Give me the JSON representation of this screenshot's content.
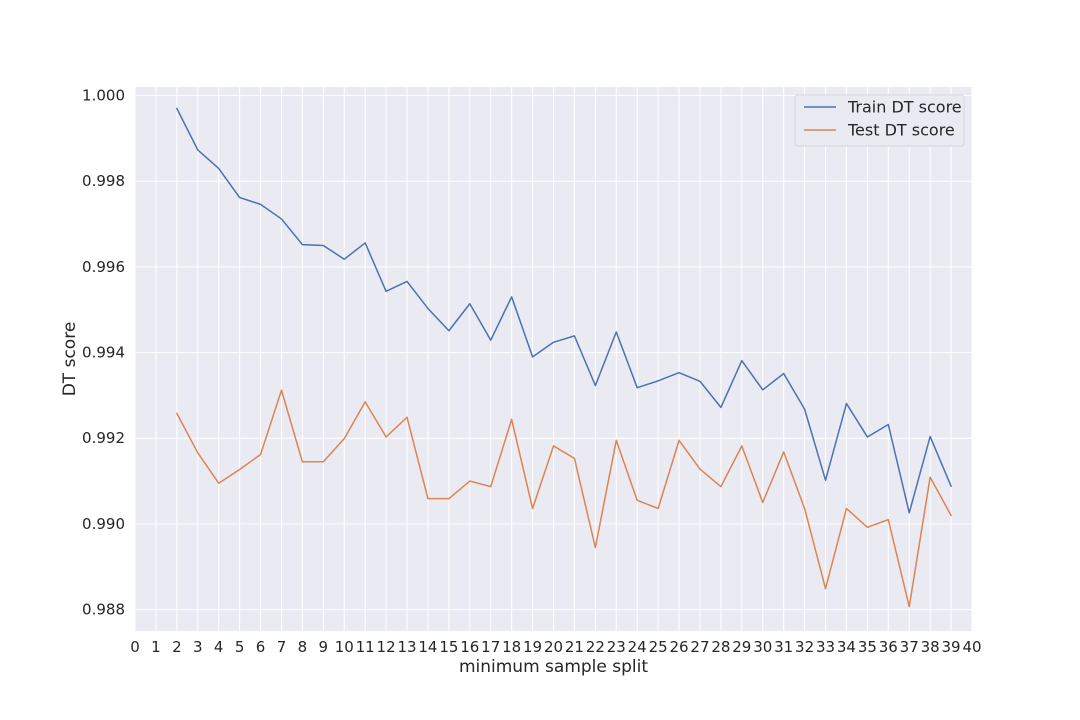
{
  "chart_data": {
    "type": "line",
    "xlabel": "minimum sample split",
    "ylabel": "DT score",
    "xlim": [
      0,
      40
    ],
    "ylim": [
      0.9875,
      1.0002
    ],
    "x_ticks": [
      0,
      1,
      2,
      3,
      4,
      5,
      6,
      7,
      8,
      9,
      10,
      11,
      12,
      13,
      14,
      15,
      16,
      17,
      18,
      19,
      20,
      21,
      22,
      23,
      24,
      25,
      26,
      27,
      28,
      29,
      30,
      31,
      32,
      33,
      34,
      35,
      36,
      37,
      38,
      39,
      40
    ],
    "y_ticks": [
      {
        "value": 0.988,
        "label": "0.988"
      },
      {
        "value": 0.99,
        "label": "0.990"
      },
      {
        "value": 0.992,
        "label": "0.992"
      },
      {
        "value": 0.994,
        "label": "0.994"
      },
      {
        "value": 0.996,
        "label": "0.996"
      },
      {
        "value": 0.998,
        "label": "0.998"
      },
      {
        "value": 1.0,
        "label": "1.000"
      }
    ],
    "grid": true,
    "legend_position": "top-right",
    "x": [
      2,
      3,
      4,
      5,
      6,
      7,
      8,
      9,
      10,
      11,
      12,
      13,
      14,
      15,
      16,
      17,
      18,
      19,
      20,
      21,
      22,
      23,
      24,
      25,
      26,
      27,
      28,
      29,
      30,
      31,
      32,
      33,
      34,
      35,
      36,
      37,
      38,
      39
    ],
    "series": [
      {
        "name": "Train DT score",
        "color": "#4c72b0",
        "values": [
          0.9997,
          0.99873,
          0.9983,
          0.99762,
          0.99746,
          0.99712,
          0.99652,
          0.9965,
          0.99618,
          0.99656,
          0.99543,
          0.99566,
          0.99503,
          0.99451,
          0.99514,
          0.99429,
          0.9953,
          0.9939,
          0.99424,
          0.99439,
          0.99323,
          0.99448,
          0.99318,
          0.99334,
          0.99353,
          0.99333,
          0.99272,
          0.99381,
          0.99313,
          0.99351,
          0.99268,
          0.99102,
          0.99281,
          0.99203,
          0.99232,
          0.99026,
          0.99204,
          0.99088
        ]
      },
      {
        "name": "Test DT score",
        "color": "#dd8452",
        "values": [
          0.99258,
          0.99166,
          0.99095,
          0.99127,
          0.99162,
          0.99312,
          0.99145,
          0.99145,
          0.99199,
          0.99285,
          0.99203,
          0.99249,
          0.99059,
          0.99059,
          0.991,
          0.99087,
          0.99244,
          0.99036,
          0.99182,
          0.99153,
          0.98945,
          0.99195,
          0.99055,
          0.99036,
          0.99195,
          0.99128,
          0.99087,
          0.99182,
          0.9905,
          0.99168,
          0.99036,
          0.98849,
          0.99036,
          0.98992,
          0.9901,
          0.98807,
          0.99109,
          0.9902
        ]
      }
    ]
  }
}
